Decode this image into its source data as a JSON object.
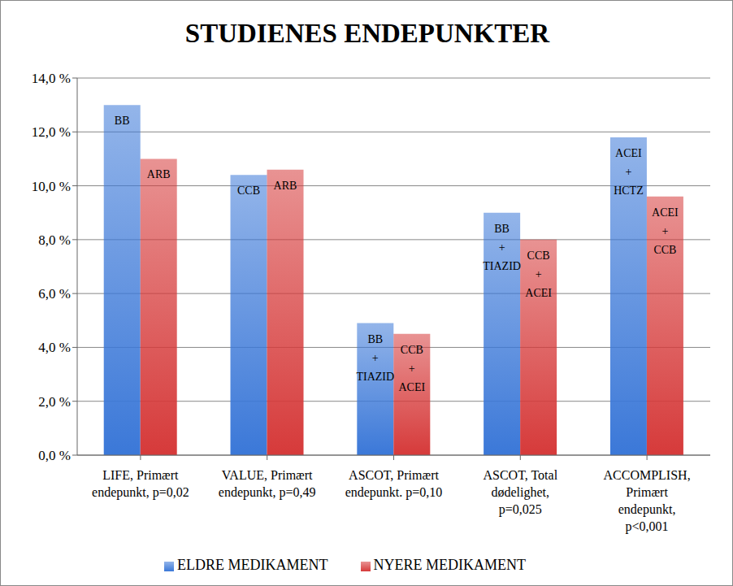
{
  "chart_data": {
    "type": "bar",
    "title": "STUDIENES ENDEPUNKTER",
    "categories": [
      "LIFE, Primært endepunkt, p=0,02",
      "VALUE, Primært endepunkt, p=0,49",
      "ASCOT, Primært endepunkt. p=0,10",
      "ASCOT, Total dødelighet, p=0,025",
      "ACCOMPLISH, Primært endepunkt, p<0,001"
    ],
    "series": [
      {
        "name": "ELDRE MEDIKAMENT",
        "color": "#3b78d8",
        "values": [
          13.0,
          10.4,
          4.9,
          9.0,
          11.8
        ],
        "labels": [
          [
            "BB"
          ],
          [
            "CCB"
          ],
          [
            "BB",
            "+",
            "TIAZID"
          ],
          [
            "BB",
            "+",
            "TIAZID"
          ],
          [
            "ACEI",
            "+",
            "HCTZ"
          ]
        ]
      },
      {
        "name": "NYERE MEDIKAMENT",
        "color": "#d63a3a",
        "values": [
          11.0,
          10.6,
          4.5,
          8.0,
          9.6
        ],
        "labels": [
          [
            "ARB"
          ],
          [
            "ARB"
          ],
          [
            "CCB",
            "+",
            "ACEI"
          ],
          [
            "CCB",
            "+",
            "ACEI"
          ],
          [
            "ACEI",
            "+",
            "CCB"
          ]
        ]
      }
    ],
    "ylim": [
      0,
      14
    ],
    "yticks": [
      {
        "value": 0,
        "label": "0,0 %"
      },
      {
        "value": 2,
        "label": "2,0 %"
      },
      {
        "value": 4,
        "label": "4,0 %"
      },
      {
        "value": 6,
        "label": "6,0 %"
      },
      {
        "value": 8,
        "label": "8,0 %"
      },
      {
        "value": 10,
        "label": "10,0 %"
      },
      {
        "value": 12,
        "label": "12,0 %"
      },
      {
        "value": 14,
        "label": "14,0 %"
      }
    ],
    "grid": true,
    "legend": "bottom"
  }
}
